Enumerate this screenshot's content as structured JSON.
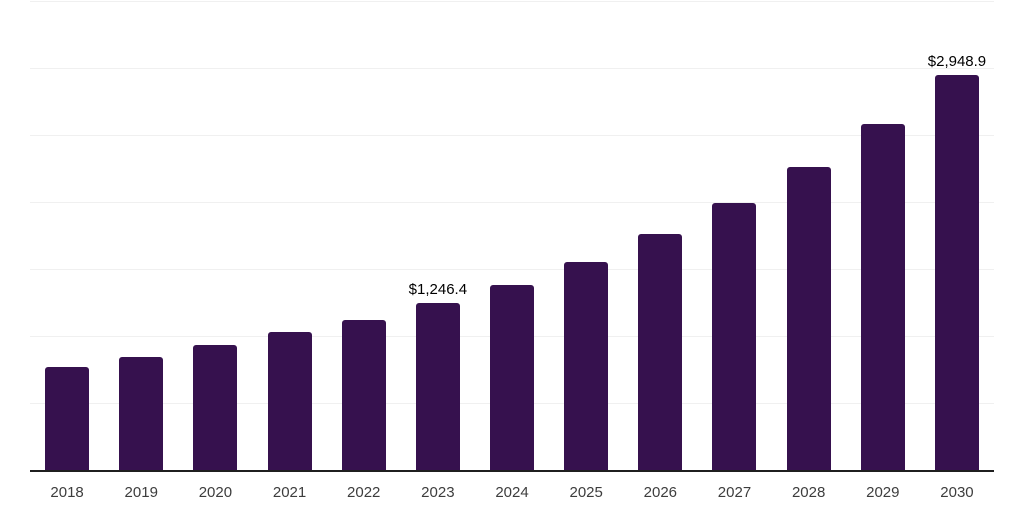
{
  "chart_data": {
    "type": "bar",
    "title": "",
    "xlabel": "",
    "ylabel": "",
    "categories": [
      "2018",
      "2019",
      "2020",
      "2021",
      "2022",
      "2023",
      "2024",
      "2025",
      "2026",
      "2027",
      "2028",
      "2029",
      "2030"
    ],
    "values": [
      770,
      840,
      930,
      1030,
      1120,
      1246.4,
      1380,
      1555,
      1760,
      1995,
      2265,
      2585,
      2948.9
    ],
    "value_labels": [
      {
        "index": 5,
        "text": "$1,246.4"
      },
      {
        "index": 12,
        "text": "$2,948.9"
      }
    ],
    "ylim": [
      0,
      3500
    ],
    "grid_step": 500,
    "grid": "horizontal-only",
    "y_tick_labels_visible": false,
    "legend_position": "none",
    "colors": {
      "bar": "#36114e",
      "gridline": "#f0f0f0",
      "axis_line": "#1f1f1f",
      "tick_label": "#3d3d3d",
      "value_label": "#000000",
      "background": "#ffffff"
    }
  }
}
